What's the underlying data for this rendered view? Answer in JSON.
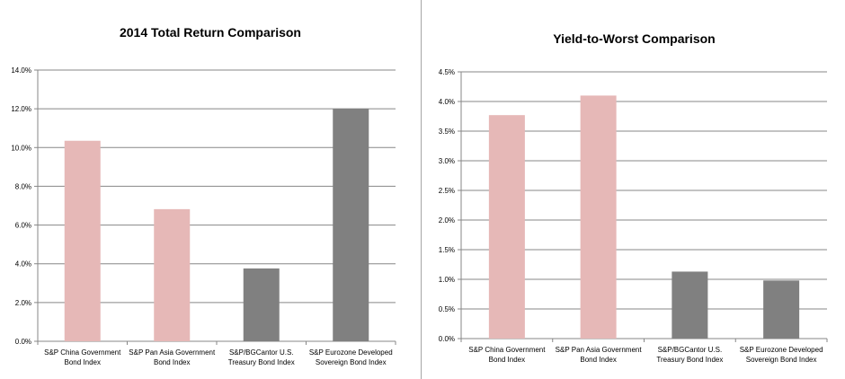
{
  "chart_data": [
    {
      "type": "bar",
      "title": "2014 Total Return Comparison",
      "xlabel": "",
      "ylabel": "",
      "categories": [
        [
          "S&P China Government",
          "Bond Index"
        ],
        [
          "S&P Pan Asia Government",
          "Bond Index"
        ],
        [
          "S&P/BGCantor U.S.",
          "Treasury Bond Index"
        ],
        [
          "S&P Eurozone Developed",
          "Sovereign Bond Index"
        ]
      ],
      "values": [
        10.35,
        6.82,
        3.76,
        12.0
      ],
      "bar_colors": [
        "#e6b8b7",
        "#e6b8b7",
        "#808080",
        "#808080"
      ],
      "yticks": [
        "0.0%",
        "2.0%",
        "4.0%",
        "6.0%",
        "8.0%",
        "10.0%",
        "12.0%",
        "14.0%"
      ],
      "ylim": [
        0,
        14
      ],
      "grid": true,
      "legend": "none"
    },
    {
      "type": "bar",
      "title": "Yield-to-Worst Comparison",
      "xlabel": "",
      "ylabel": "",
      "categories": [
        [
          "S&P China Government",
          "Bond Index"
        ],
        [
          "S&P Pan Asia Government",
          "Bond Index"
        ],
        [
          "S&P/BGCantor U.S.",
          "Treasury Bond Index"
        ],
        [
          "S&P Eurozone Developed",
          "Sovereign Bond Index"
        ]
      ],
      "values": [
        3.77,
        4.1,
        1.13,
        0.98
      ],
      "bar_colors": [
        "#e6b8b7",
        "#e6b8b7",
        "#808080",
        "#808080"
      ],
      "yticks": [
        "0.0%",
        "0.5%",
        "1.0%",
        "1.5%",
        "2.0%",
        "2.5%",
        "3.0%",
        "3.5%",
        "4.0%",
        "4.5%"
      ],
      "ylim": [
        0,
        4.5
      ],
      "grid": true,
      "legend": "none"
    }
  ]
}
